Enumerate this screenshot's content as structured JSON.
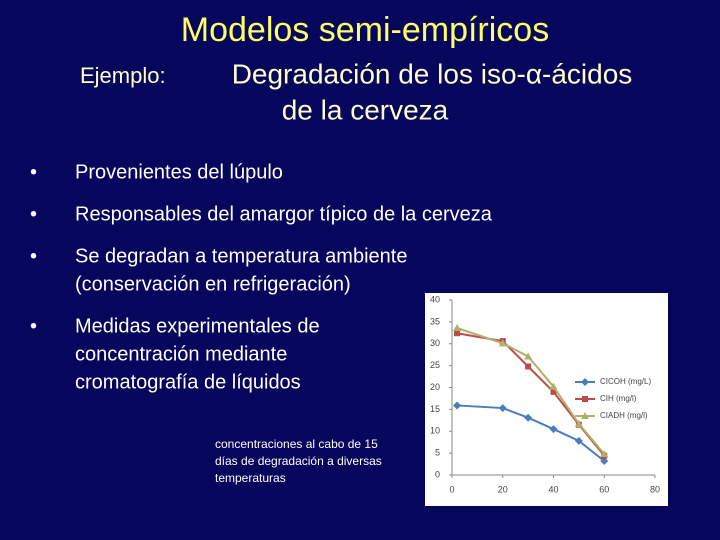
{
  "title": "Modelos semi-empíricos",
  "subtitle": {
    "label": "Ejemplo:",
    "lines": [
      "Degradación de los iso-α-ácidos",
      "de la cerveza"
    ]
  },
  "bullets": [
    [
      "Provenientes del lúpulo"
    ],
    [
      "Responsables del amargor típico de la cerveza"
    ],
    [
      "Se degradan a temperatura ambiente",
      "(conservación en refrigeración)"
    ],
    [
      "Medidas experimentales de",
      "concentración mediante",
      "cromatografía de líquidos"
    ]
  ],
  "caption": [
    "concentraciones al cabo de 15",
    "días de degradación a diversas",
    "temperaturas"
  ],
  "chart_data": {
    "type": "line",
    "x": [
      2,
      20,
      30,
      40,
      50,
      60
    ],
    "series": [
      {
        "name": "CICOH (mg/L)",
        "color": "#4a7ebb",
        "marker": "diamond",
        "values": [
          15.9,
          15.3,
          13.1,
          10.5,
          7.8,
          3.2
        ]
      },
      {
        "name": "CIH (mg/l)",
        "color": "#be4b48",
        "marker": "square",
        "values": [
          32.4,
          30.6,
          24.8,
          19,
          11.5,
          4.4
        ]
      },
      {
        "name": "CIADH (mg/l)",
        "color": "#b0b06a",
        "marker": "triangle",
        "values": [
          33.6,
          30.1,
          27.1,
          20.2,
          11.7,
          4.8
        ]
      }
    ],
    "xlim": [
      0,
      80
    ],
    "xticks": [
      0,
      20,
      40,
      60,
      80
    ],
    "ylim": [
      0,
      40
    ],
    "yticks": [
      0,
      5,
      10,
      15,
      20,
      25,
      30,
      35,
      40
    ],
    "grid": false,
    "legend": "right"
  }
}
